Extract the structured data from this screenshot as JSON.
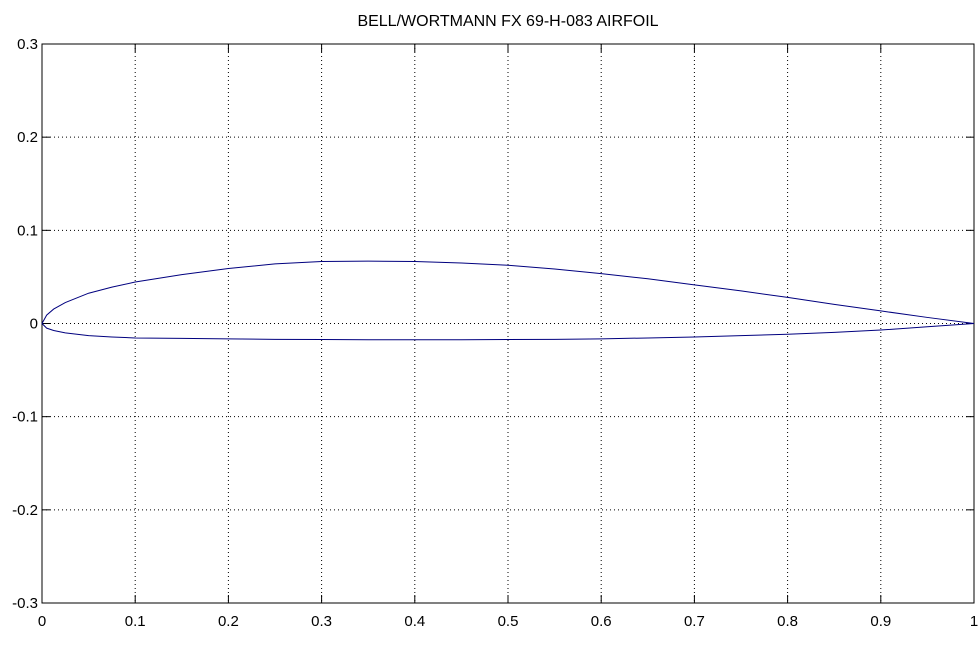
{
  "chart_data": {
    "type": "line",
    "title": "BELL/WORTMANN FX 69-H-083 AIRFOIL",
    "xlabel": "",
    "ylabel": "",
    "xlim": [
      0,
      1
    ],
    "ylim": [
      -0.3,
      0.3
    ],
    "xticks": [
      0,
      0.1,
      0.2,
      0.3,
      0.4,
      0.5,
      0.6,
      0.7,
      0.8,
      0.9,
      1
    ],
    "xtick_labels": [
      "0",
      "0.1",
      "0.2",
      "0.3",
      "0.4",
      "0.5",
      "0.6",
      "0.7",
      "0.8",
      "0.9",
      "1"
    ],
    "yticks": [
      0.3,
      0.2,
      0.1,
      0,
      -0.1,
      -0.2,
      -0.3
    ],
    "ytick_labels": [
      "0.3",
      "0.2",
      "0.1",
      "0",
      "-0.1",
      "-0.2",
      "-0.3"
    ],
    "grid": true,
    "grid_style": "dotted",
    "line_color": "#00007f",
    "series": [
      {
        "x": [
          1.0,
          0.95,
          0.9,
          0.85,
          0.8,
          0.75,
          0.7,
          0.65,
          0.6,
          0.55,
          0.5,
          0.45,
          0.4,
          0.35,
          0.3,
          0.25,
          0.2,
          0.15,
          0.1,
          0.075,
          0.05,
          0.025,
          0.0125,
          0.005,
          0.0,
          0.005,
          0.0125,
          0.025,
          0.05,
          0.075,
          0.1,
          0.15,
          0.2,
          0.25,
          0.3,
          0.35,
          0.4,
          0.45,
          0.5,
          0.55,
          0.6,
          0.65,
          0.7,
          0.75,
          0.8,
          0.85,
          0.9,
          0.95,
          1.0
        ],
        "y": [
          0.0,
          0.0065,
          0.0135,
          0.0205,
          0.028,
          0.035,
          0.0415,
          0.048,
          0.0535,
          0.0585,
          0.0625,
          0.065,
          0.0665,
          0.067,
          0.0665,
          0.064,
          0.059,
          0.0525,
          0.0445,
          0.039,
          0.0325,
          0.0225,
          0.0155,
          0.009,
          0.0,
          -0.005,
          -0.0075,
          -0.01,
          -0.013,
          -0.0145,
          -0.0155,
          -0.016,
          -0.0165,
          -0.017,
          -0.0172,
          -0.0174,
          -0.0175,
          -0.0174,
          -0.0172,
          -0.017,
          -0.0165,
          -0.0155,
          -0.0145,
          -0.013,
          -0.0115,
          -0.0095,
          -0.007,
          -0.0035,
          0.0
        ]
      }
    ]
  }
}
